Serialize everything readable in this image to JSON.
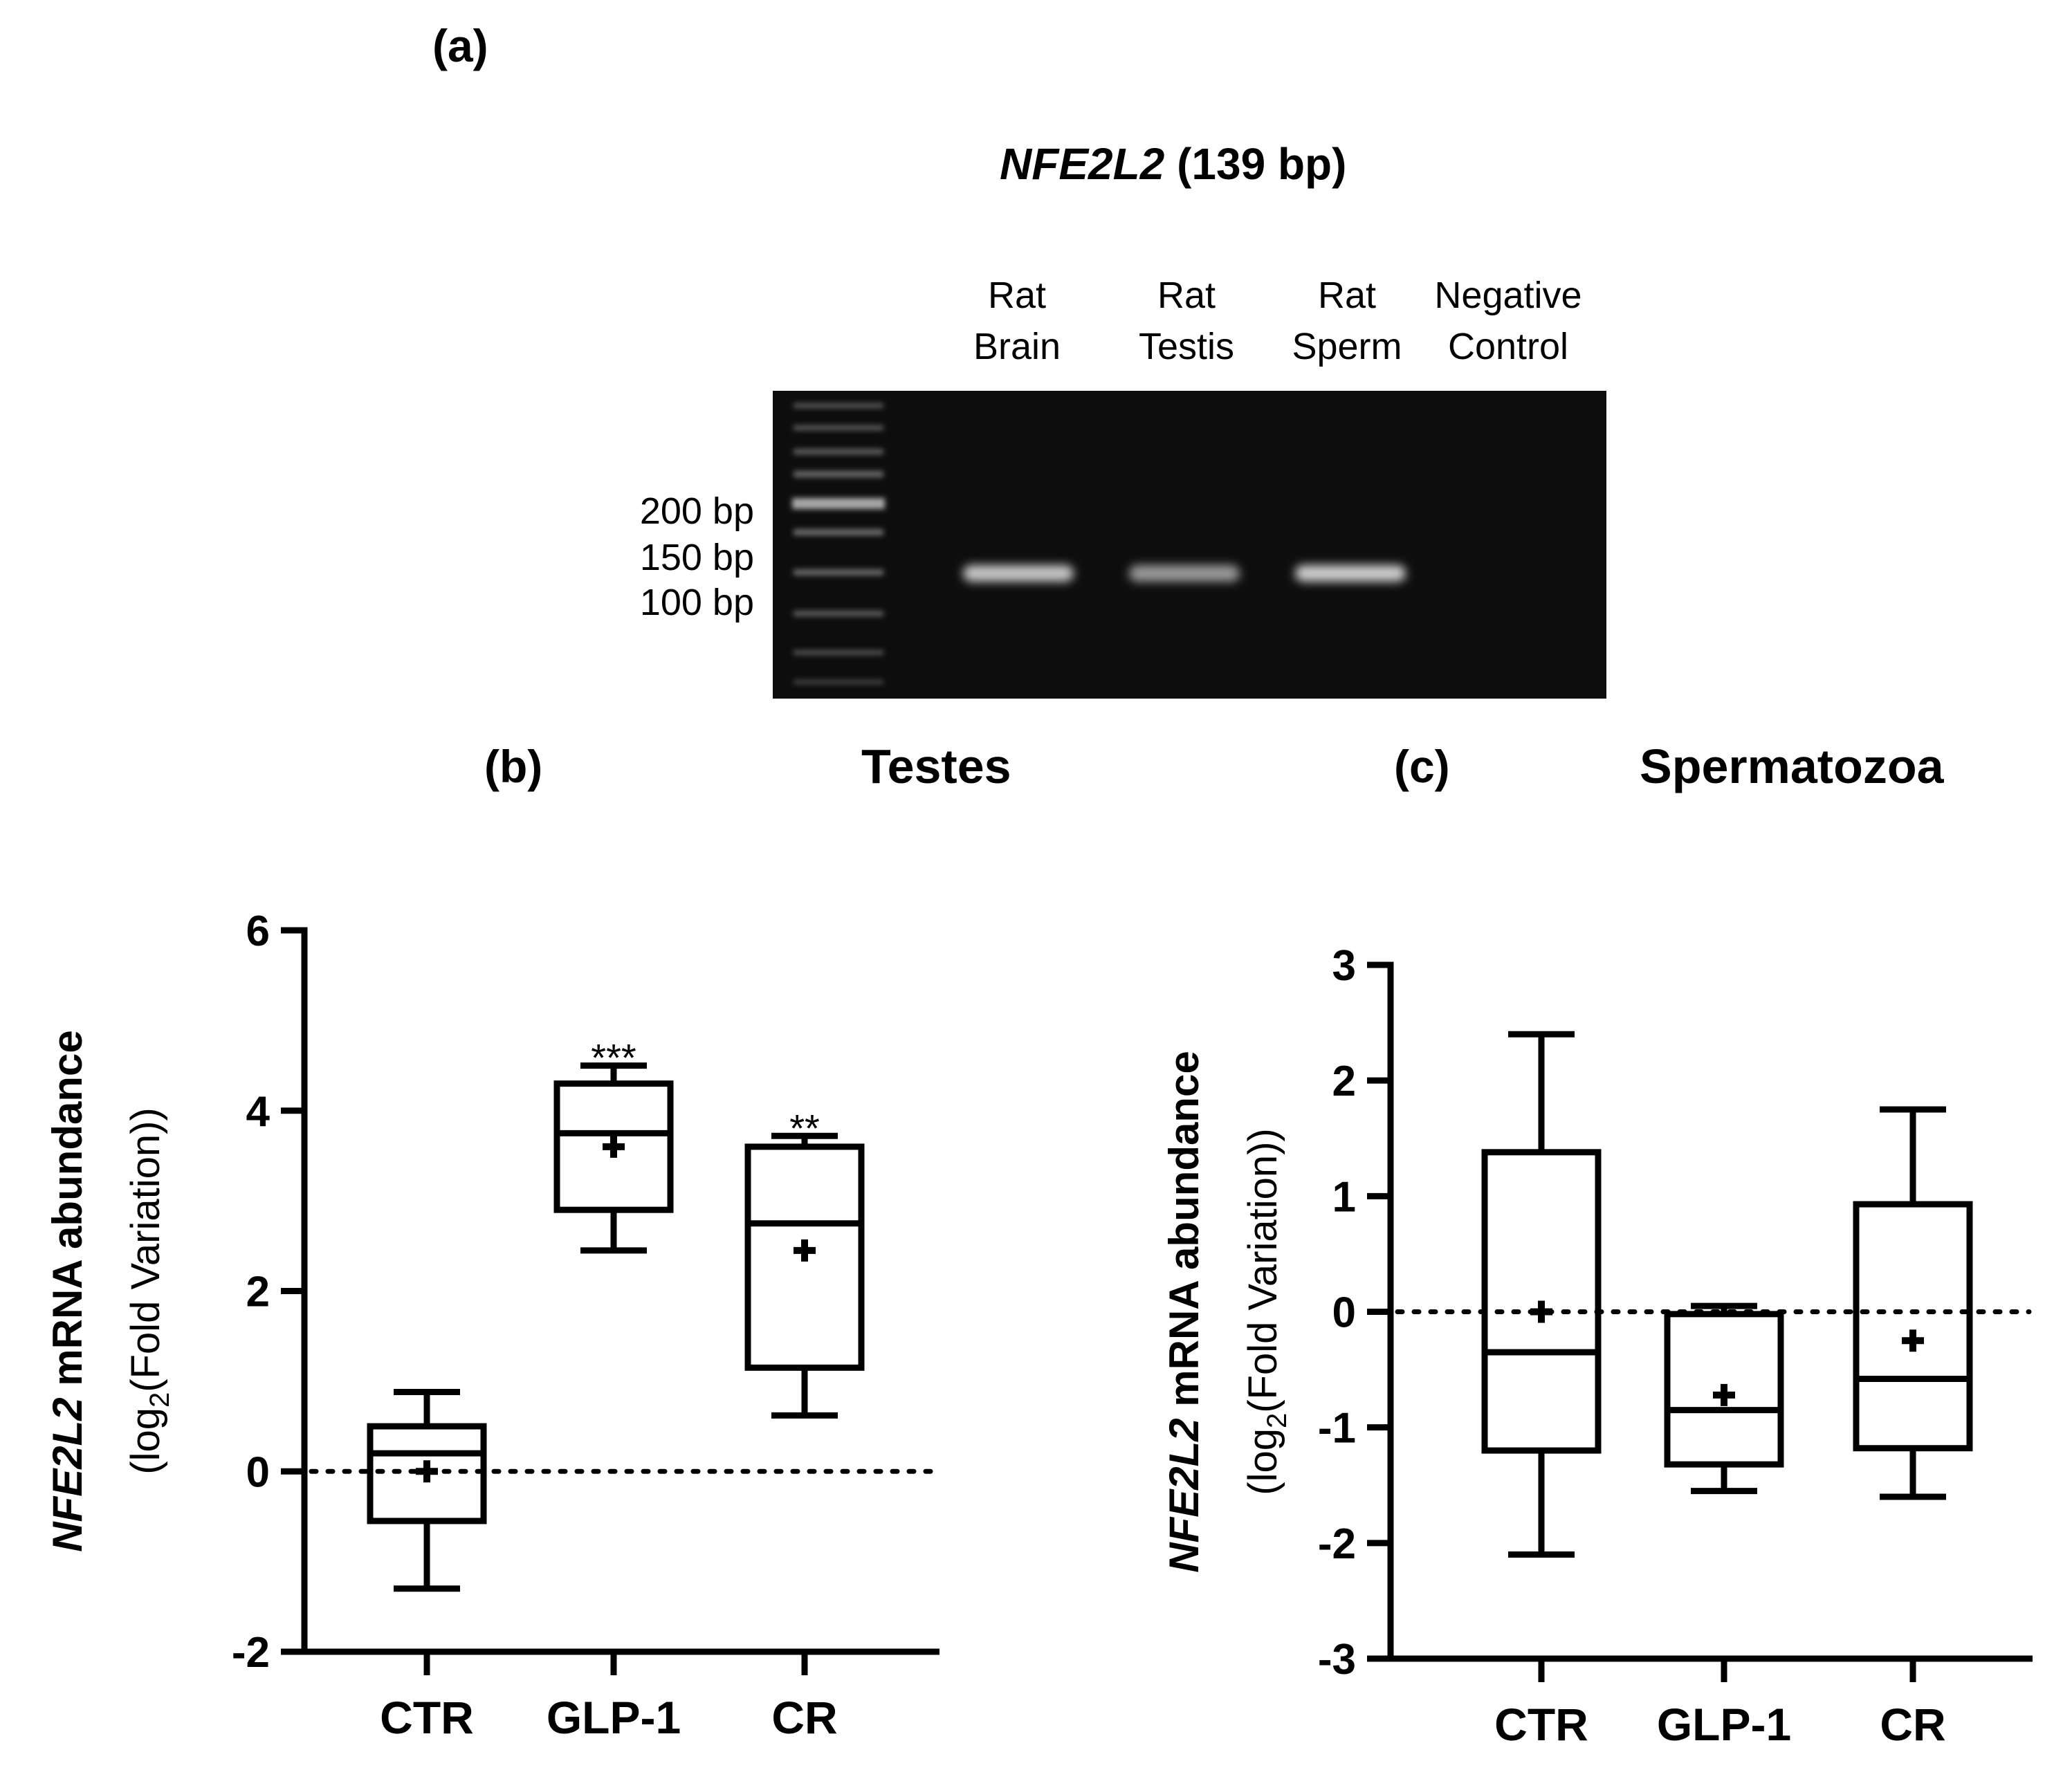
{
  "panel_a": {
    "label": "(a)",
    "gene": "NFE2L2",
    "amplicon": "(139 bp)",
    "lanes": [
      {
        "line1": "Rat",
        "line2": "Brain",
        "band": true
      },
      {
        "line1": "Rat",
        "line2": "Testis",
        "band": true
      },
      {
        "line1": "Rat",
        "line2": "Sperm",
        "band": true
      },
      {
        "line1": "Negative",
        "line2": "Control",
        "band": false
      }
    ],
    "ladder_labels": [
      "200 bp",
      "150 bp",
      "100 bp"
    ]
  },
  "panel_b": {
    "label": "(b)",
    "title": "Testes"
  },
  "panel_c": {
    "label": "(c)",
    "title": "Spermatozoa"
  },
  "chart_data": [
    {
      "type": "box",
      "panel": "(b)",
      "title": "Testes",
      "ylabel_gene": "NFE2L2",
      "ylabel_rest": " mRNA abundance",
      "ylabel_line2": "(log2(Fold Variation))",
      "ylim": [
        -2,
        6
      ],
      "yticks": [
        -2,
        0,
        2,
        4,
        6
      ],
      "reference_line": 0,
      "categories": [
        "CTR",
        "GLP-1",
        "CR"
      ],
      "boxes": [
        {
          "category": "CTR",
          "min": -1.3,
          "q1": -0.55,
          "median": 0.2,
          "q3": 0.5,
          "max": 0.88,
          "mean": 0.0,
          "annotation": ""
        },
        {
          "category": "GLP-1",
          "min": 2.45,
          "q1": 2.9,
          "median": 3.75,
          "q3": 4.3,
          "max": 4.5,
          "mean": 3.6,
          "annotation": "***"
        },
        {
          "category": "CR",
          "min": 0.62,
          "q1": 1.15,
          "median": 2.75,
          "q3": 3.6,
          "max": 3.72,
          "mean": 2.45,
          "annotation": "**"
        }
      ]
    },
    {
      "type": "box",
      "panel": "(c)",
      "title": "Spermatozoa",
      "ylabel_gene": "NFE2L2",
      "ylabel_rest": " mRNA abundance",
      "ylabel_line2": "(log2(Fold Variation))",
      "ylim": [
        -3,
        3
      ],
      "yticks": [
        -3,
        -2,
        -1,
        0,
        1,
        2,
        3
      ],
      "reference_line": 0,
      "categories": [
        "CTR",
        "GLP-1",
        "CR"
      ],
      "boxes": [
        {
          "category": "CTR",
          "min": -2.1,
          "q1": -1.2,
          "median": -0.35,
          "q3": 1.38,
          "max": 2.4,
          "mean": 0.0,
          "annotation": ""
        },
        {
          "category": "GLP-1",
          "min": -1.55,
          "q1": -1.32,
          "median": -0.85,
          "q3": -0.02,
          "max": 0.05,
          "mean": -0.72,
          "annotation": ""
        },
        {
          "category": "CR",
          "min": -1.6,
          "q1": -1.18,
          "median": -0.58,
          "q3": 0.93,
          "max": 1.75,
          "mean": -0.25,
          "annotation": ""
        }
      ]
    }
  ]
}
